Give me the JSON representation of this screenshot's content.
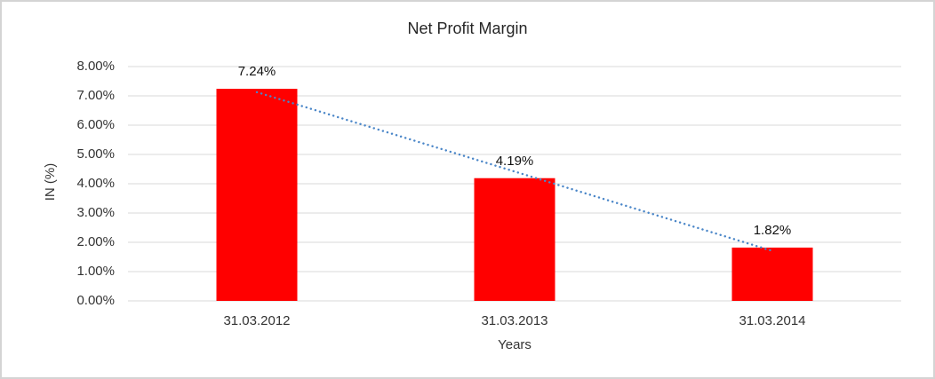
{
  "chart_data": {
    "type": "bar",
    "title": "Net Profit Margin",
    "xlabel": "Years",
    "ylabel": "IN (%)",
    "categories": [
      "31.03.2012",
      "31.03.2013",
      "31.03.2014"
    ],
    "values": [
      7.24,
      4.19,
      1.82
    ],
    "data_labels": [
      "7.24%",
      "4.19%",
      "1.82%"
    ],
    "y_ticks": [
      "0.00%",
      "1.00%",
      "2.00%",
      "3.00%",
      "4.00%",
      "5.00%",
      "6.00%",
      "7.00%",
      "8.00%"
    ],
    "ylim": [
      0,
      8
    ],
    "grid": true,
    "legend": "none",
    "bar_color": "#FF0000",
    "gridline_color": "#D9D9D9",
    "trendline": {
      "type": "linear",
      "style": "dotted",
      "color": "#4A86C8"
    }
  }
}
